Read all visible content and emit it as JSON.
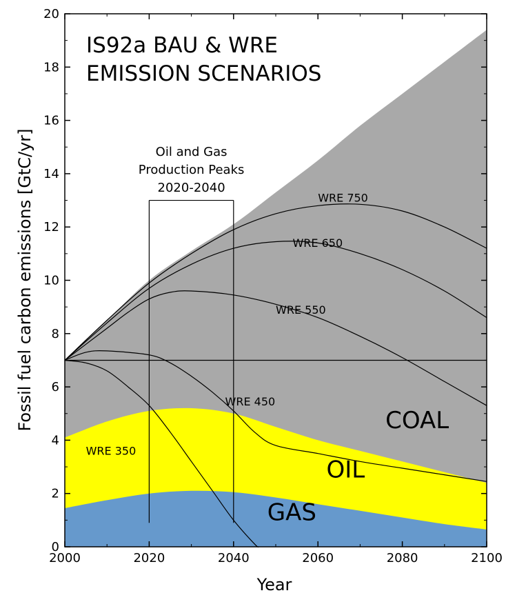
{
  "chart_data": {
    "type": "area",
    "title_lines": [
      "IS92a BAU & WRE",
      "EMISSION SCENARIOS"
    ],
    "xlabel": "Year",
    "ylabel": "Fossil fuel carbon emissions [GtC/yr]",
    "xlim": [
      2000,
      2100
    ],
    "ylim": [
      0,
      20
    ],
    "x_ticks": [
      "2000",
      "2020",
      "2040",
      "2060",
      "2080",
      "2100"
    ],
    "y_ticks": [
      "0",
      "2",
      "4",
      "6",
      "8",
      "10",
      "12",
      "14",
      "16",
      "18",
      "20"
    ],
    "grid": false,
    "areas": [
      {
        "label": "COAL",
        "color": "#a9a9a9",
        "x": [
          2000,
          2010,
          2020,
          2030,
          2040,
          2050,
          2060,
          2070,
          2080,
          2090,
          2100
        ],
        "top": [
          7.0,
          8.5,
          10.0,
          11.1,
          12.1,
          13.3,
          14.5,
          15.8,
          17.0,
          18.2,
          19.4
        ]
      },
      {
        "label": "OIL",
        "color": "#ffff00",
        "x": [
          2000,
          2010,
          2020,
          2030,
          2040,
          2050,
          2060,
          2070,
          2080,
          2090,
          2100
        ],
        "top": [
          4.1,
          4.7,
          5.1,
          5.2,
          5.0,
          4.5,
          4.0,
          3.6,
          3.2,
          2.8,
          2.4
        ]
      },
      {
        "label": "GAS",
        "color": "#6699cc",
        "x": [
          2000,
          2010,
          2020,
          2030,
          2040,
          2050,
          2060,
          2070,
          2080,
          2090,
          2100
        ],
        "top": [
          1.45,
          1.75,
          2.0,
          2.1,
          2.05,
          1.85,
          1.6,
          1.35,
          1.1,
          0.85,
          0.65
        ]
      }
    ],
    "series": [
      {
        "name": "WRE 750",
        "x": [
          2000,
          2010,
          2020,
          2030,
          2040,
          2050,
          2060,
          2070,
          2080,
          2090,
          2100
        ],
        "y": [
          7.0,
          8.5,
          9.9,
          11.0,
          11.9,
          12.5,
          12.8,
          12.85,
          12.6,
          12.0,
          11.2
        ]
      },
      {
        "name": "WRE 650",
        "x": [
          2000,
          2010,
          2020,
          2030,
          2040,
          2050,
          2060,
          2070,
          2080,
          2090,
          2100
        ],
        "y": [
          7.0,
          8.4,
          9.7,
          10.6,
          11.2,
          11.45,
          11.4,
          11.0,
          10.4,
          9.6,
          8.6
        ]
      },
      {
        "name": "WRE 550",
        "x": [
          2000,
          2010,
          2015,
          2020,
          2025,
          2030,
          2040,
          2050,
          2060,
          2070,
          2080,
          2090,
          2100
        ],
        "y": [
          7.0,
          8.2,
          8.8,
          9.3,
          9.55,
          9.6,
          9.45,
          9.1,
          8.6,
          7.9,
          7.1,
          6.2,
          5.3
        ]
      },
      {
        "name": "WRE 450",
        "x": [
          2000,
          2005,
          2010,
          2020,
          2025,
          2030,
          2035,
          2040,
          2045,
          2050,
          2060,
          2070,
          2080,
          2090,
          2100
        ],
        "y": [
          7.0,
          7.3,
          7.35,
          7.2,
          6.9,
          6.4,
          5.8,
          5.1,
          4.3,
          3.8,
          3.5,
          3.2,
          2.95,
          2.7,
          2.45
        ]
      },
      {
        "name": "WRE 350",
        "x": [
          2000,
          2005,
          2010,
          2015,
          2020,
          2025,
          2030,
          2035,
          2040,
          2045,
          2046
        ],
        "y": [
          7.0,
          6.9,
          6.6,
          6.0,
          5.3,
          4.3,
          3.2,
          2.1,
          1.0,
          0.1,
          0.0
        ]
      },
      {
        "name": "",
        "x": [
          2000,
          2100
        ],
        "y": [
          7.0,
          7.0
        ]
      }
    ],
    "annotation": {
      "lines": [
        "Oil and Gas",
        "Production Peaks",
        "2020-2040"
      ],
      "x_range": [
        2020,
        2040
      ],
      "bracket_top_y": 13.0,
      "bottom_y": 0.9
    },
    "curve_labels": [
      {
        "text": "WRE 750",
        "x": 2060,
        "y": 12.95
      },
      {
        "text": "WRE 650",
        "x": 2054,
        "y": 11.25
      },
      {
        "text": "WRE 550",
        "x": 2050,
        "y": 8.75
      },
      {
        "text": "WRE 450",
        "x": 2038,
        "y": 5.3
      },
      {
        "text": "WRE 350",
        "x": 2005,
        "y": 3.45
      }
    ],
    "region_labels": [
      {
        "text": "COAL",
        "x": 2076,
        "y": 4.45
      },
      {
        "text": "OIL",
        "x": 2062,
        "y": 2.6
      },
      {
        "text": "GAS",
        "x": 2048,
        "y": 1.0
      }
    ]
  }
}
